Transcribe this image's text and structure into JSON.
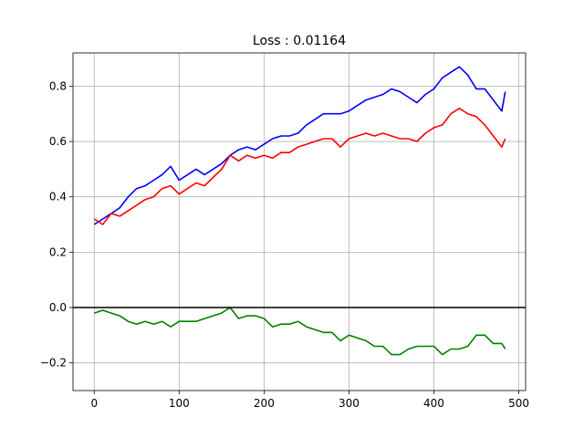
{
  "chart_data": {
    "type": "line",
    "title": "Loss : 0.01164",
    "xlabel": "",
    "ylabel": "",
    "xlim": [
      -25,
      508
    ],
    "ylim": [
      -0.3,
      0.92
    ],
    "grid": true,
    "x_ticks": [
      0,
      100,
      200,
      300,
      400,
      500
    ],
    "x_tick_labels": [
      "0",
      "100",
      "200",
      "300",
      "400",
      "500"
    ],
    "y_ticks": [
      -0.2,
      0.0,
      0.2,
      0.4,
      0.6,
      0.8
    ],
    "y_tick_labels": [
      "−0.2",
      "0.0",
      "0.2",
      "0.4",
      "0.6",
      "0.8"
    ],
    "hline": {
      "y": 0.0,
      "color": "#000000"
    },
    "x": [
      0,
      10,
      20,
      30,
      40,
      50,
      60,
      70,
      80,
      90,
      100,
      110,
      120,
      130,
      140,
      150,
      160,
      170,
      180,
      190,
      200,
      210,
      220,
      230,
      240,
      250,
      260,
      270,
      280,
      290,
      300,
      310,
      320,
      330,
      340,
      350,
      360,
      370,
      380,
      390,
      400,
      410,
      420,
      430,
      440,
      450,
      460,
      470,
      480,
      484
    ],
    "series": [
      {
        "color": "#0000ff",
        "values": [
          0.3,
          0.32,
          0.34,
          0.36,
          0.4,
          0.43,
          0.44,
          0.46,
          0.48,
          0.51,
          0.46,
          0.48,
          0.5,
          0.48,
          0.5,
          0.52,
          0.55,
          0.57,
          0.58,
          0.57,
          0.59,
          0.61,
          0.62,
          0.62,
          0.63,
          0.66,
          0.68,
          0.7,
          0.7,
          0.7,
          0.71,
          0.73,
          0.75,
          0.76,
          0.77,
          0.79,
          0.78,
          0.76,
          0.74,
          0.77,
          0.79,
          0.83,
          0.85,
          0.87,
          0.84,
          0.79,
          0.79,
          0.75,
          0.71,
          0.78
        ]
      },
      {
        "color": "#ff0000",
        "values": [
          0.32,
          0.3,
          0.34,
          0.33,
          0.35,
          0.37,
          0.39,
          0.4,
          0.43,
          0.44,
          0.41,
          0.43,
          0.45,
          0.44,
          0.47,
          0.5,
          0.55,
          0.53,
          0.55,
          0.54,
          0.55,
          0.54,
          0.56,
          0.56,
          0.58,
          0.59,
          0.6,
          0.61,
          0.61,
          0.58,
          0.61,
          0.62,
          0.63,
          0.62,
          0.63,
          0.62,
          0.61,
          0.61,
          0.6,
          0.63,
          0.65,
          0.66,
          0.7,
          0.72,
          0.7,
          0.69,
          0.66,
          0.62,
          0.58,
          0.61
        ]
      },
      {
        "color": "#008000",
        "values": [
          -0.02,
          -0.01,
          -0.02,
          -0.03,
          -0.05,
          -0.06,
          -0.05,
          -0.06,
          -0.05,
          -0.07,
          -0.05,
          -0.05,
          -0.05,
          -0.04,
          -0.03,
          -0.02,
          0.0,
          -0.04,
          -0.03,
          -0.03,
          -0.04,
          -0.07,
          -0.06,
          -0.06,
          -0.05,
          -0.07,
          -0.08,
          -0.09,
          -0.09,
          -0.12,
          -0.1,
          -0.11,
          -0.12,
          -0.14,
          -0.14,
          -0.17,
          -0.17,
          -0.15,
          -0.14,
          -0.14,
          -0.14,
          -0.17,
          -0.15,
          -0.15,
          -0.14,
          -0.1,
          -0.1,
          -0.13,
          -0.13,
          -0.15
        ]
      }
    ]
  }
}
